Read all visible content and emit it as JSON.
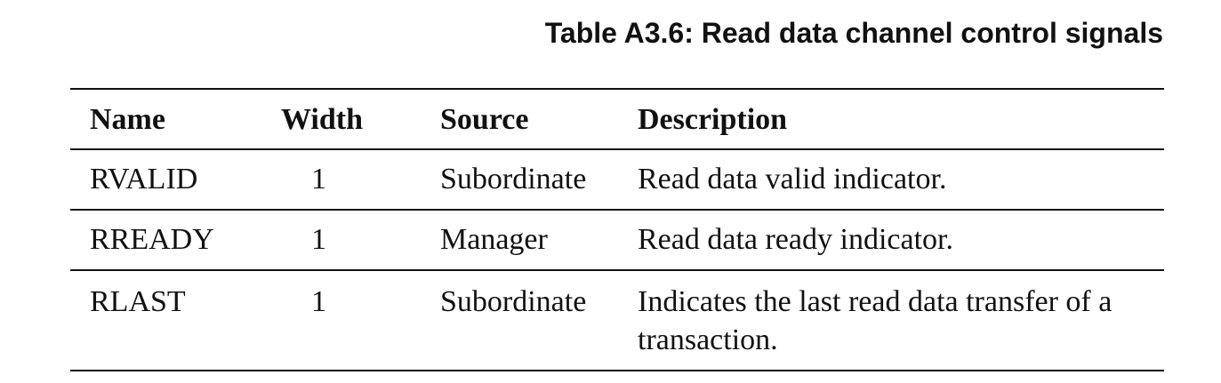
{
  "caption": "Table A3.6: Read data channel control signals",
  "table": {
    "headers": {
      "name": "Name",
      "width": "Width",
      "source": "Source",
      "description": "Description"
    },
    "rows": [
      {
        "name": "RVALID",
        "width": "1",
        "source": "Subordinate",
        "description": "Read data valid indicator."
      },
      {
        "name": "RREADY",
        "width": "1",
        "source": "Manager",
        "description": "Read data ready indicator."
      },
      {
        "name": "RLAST",
        "width": "1",
        "source": "Subordinate",
        "description": "Indicates the last read data transfer of a transaction."
      }
    ]
  }
}
